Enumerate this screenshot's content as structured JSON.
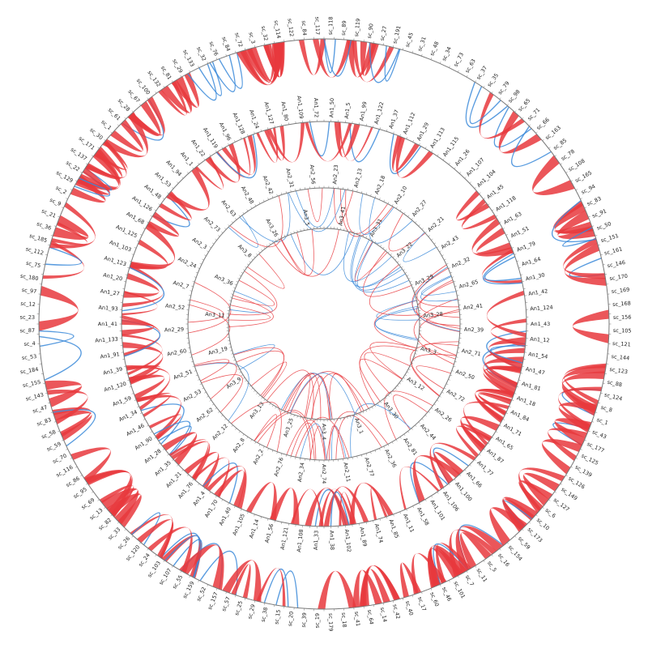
{
  "rings": [
    {
      "labels": [
        "sc_118",
        "sc_89",
        "sc_119",
        "sc_90",
        "sc_27",
        "sc_191",
        "sc_45",
        "sc_31",
        "sc_48",
        "sc_34",
        "sc_73",
        "sc_63",
        "sc_37",
        "sc_35",
        "sc_79",
        "sc_98",
        "sc_65",
        "sc_71",
        "sc_66",
        "sc_163",
        "sc_85",
        "sc_78",
        "sc_108",
        "sc_165",
        "sc_94",
        "sc_83",
        "sc_91",
        "sc_50",
        "sc_151",
        "sc_161",
        "sc_146",
        "sc_170",
        "sc_169",
        "sc_168",
        "sc_156",
        "sc_105",
        "sc_121",
        "sc_144",
        "sc_123",
        "sc_88",
        "sc_124",
        "sc_8",
        "sc_1",
        "sc_43",
        "sc_177",
        "sc_125",
        "sc_139",
        "sc_126",
        "sc_149",
        "sc_127",
        "sc_6",
        "sc_10",
        "sc_173",
        "sc_59",
        "sc_154",
        "sc_16",
        "sc_5",
        "sc_11",
        "sc_7",
        "sc_101",
        "sc_46",
        "sc_60",
        "sc_17",
        "sc_40",
        "sc_42",
        "sc_14",
        "sc_64",
        "sc_41",
        "sc_18",
        "sc_179",
        "sc_19",
        "sc_39",
        "sc_20",
        "sc_15",
        "sc_38",
        "sc_29",
        "sc_25",
        "sc_57",
        "sc_157",
        "sc_52",
        "sc_159",
        "sc_55",
        "sc_107",
        "sc_103",
        "sc_24",
        "sc_120",
        "sc_26",
        "sc_33",
        "sc_82",
        "sc_13",
        "sc_69",
        "sc_95",
        "sc_86",
        "sc_116",
        "sc_70",
        "sc_59",
        "sc_58",
        "sc_83",
        "sc_47",
        "sc_143",
        "sc_155",
        "sc_184",
        "sc_53",
        "sc_4",
        "sc_87",
        "sc_23",
        "sc_12",
        "sc_97",
        "sc_180",
        "sc_75",
        "sc_112",
        "sc_185",
        "sc_36",
        "sc_21",
        "sc_9",
        "sc_2",
        "sc_129",
        "sc_22",
        "sc_137",
        "sc_171",
        "sc_30",
        "sc_1",
        "sc_61",
        "sc_28",
        "sc_67",
        "sc_100",
        "sc_132",
        "sc_81",
        "sc_29",
        "sc_133",
        "sc_32",
        "sc_76",
        "sc_84",
        "sc_72",
        "sc_3",
        "sc_32",
        "sc_114",
        "sc_122",
        "sc_84",
        "sc_117"
      ]
    },
    {
      "labels": [
        "An1_50",
        "An1_5",
        "An1_99",
        "An1_122",
        "An1_37",
        "An1_112",
        "An1_29",
        "An1_113",
        "An1_115",
        "An1_26",
        "An1_107",
        "An1_104",
        "An1_45",
        "An1_118",
        "An1_63",
        "An1_51",
        "An1_79",
        "An1_64",
        "An1_30",
        "An1_42",
        "An1_124",
        "An1_43",
        "An1_12",
        "An1_54",
        "An1_47",
        "An1_81",
        "An1_18",
        "An1_84",
        "An1_71",
        "An1_65",
        "An1_87",
        "An1_77",
        "An1_66",
        "An1_100",
        "An1_106",
        "An1_101",
        "An1_58",
        "An1_11",
        "An1_85",
        "An1_74",
        "An1_89",
        "An1_102",
        "An1_38",
        "An1_33",
        "An1_108",
        "An1_121",
        "An1_56",
        "An1_14",
        "An1_105",
        "An1_40",
        "An1_70",
        "An1_4",
        "An1_76",
        "An1_21",
        "An1_35",
        "An1_28",
        "An1_90",
        "An1_46",
        "An1_34",
        "An1_59",
        "An1_120",
        "An1_39",
        "An1_91",
        "An1_133",
        "An1_41",
        "An1_93",
        "An1_27",
        "An1_20",
        "An1_123",
        "An1_103",
        "An1_125",
        "An1_68",
        "An1_126",
        "An1_48",
        "An1_53",
        "An1_94",
        "An1_1",
        "An1_22",
        "An1_119",
        "An1_96",
        "An1_128",
        "An1_24",
        "An1_127",
        "An1_80",
        "An1_109",
        "An1_72"
      ]
    },
    {
      "labels": [
        "An2_23",
        "An2_13",
        "An2_18",
        "An2_10",
        "An2_27",
        "An2_21",
        "An2_43",
        "An2_32",
        "An2_65",
        "An2_41",
        "An2_39",
        "An2_71",
        "An2_50",
        "An2_72",
        "An2_26",
        "An2_44",
        "An2_81",
        "An2_36",
        "An2_77",
        "An2_11",
        "An2_74",
        "An2_34",
        "An2_76",
        "An2_2",
        "An2_8",
        "An2_12",
        "An2_62",
        "An2_53",
        "An2_51",
        "An2_60",
        "An2_29",
        "An2_52",
        "An2_7",
        "An2_24",
        "An2_3",
        "An2_73",
        "An2_63",
        "An2_48",
        "An2_42",
        "An2_31",
        "An2_56"
      ]
    },
    {
      "labels": [
        "An3_41",
        "An3_31",
        "An3_22",
        "An3_29",
        "An3_28",
        "An3_3",
        "An3_12",
        "An3_30",
        "An3_1",
        "An3_4",
        "An3_25",
        "An3_13",
        "An3_9",
        "An3_19",
        "An3_11",
        "An3_36",
        "An3_8",
        "An3_26",
        "An3_5"
      ]
    }
  ]
}
